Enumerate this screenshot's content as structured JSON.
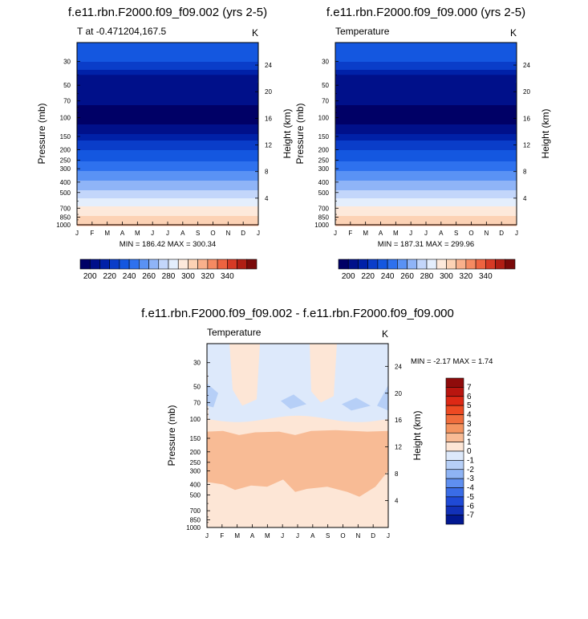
{
  "chart_data": [
    {
      "type": "contour",
      "title": "f.e11.rbn.F2000.f09_f09.002 (yrs 2-5)",
      "left_string": "T at -0.471204,167.5",
      "right_string": "K",
      "xlabel": "",
      "ylabel": "Pressure (mb)",
      "y2label": "Height (km)",
      "x_ticks": [
        "J",
        "F",
        "M",
        "A",
        "M",
        "J",
        "J",
        "A",
        "S",
        "O",
        "N",
        "D",
        "J"
      ],
      "y_ticks": [
        30,
        50,
        70,
        100,
        150,
        200,
        250,
        300,
        400,
        500,
        700,
        850,
        1000
      ],
      "y2_ticks": [
        24,
        20,
        16,
        12,
        8,
        4
      ],
      "ylim": [
        1000,
        20
      ],
      "stats": "MIN = 186.42 MAX = 300.34",
      "profile": [
        {
          "p": 20,
          "T": 225
        },
        {
          "p": 30,
          "T": 220
        },
        {
          "p": 40,
          "T": 205
        },
        {
          "p": 60,
          "T": 192
        },
        {
          "p": 100,
          "T": 188
        },
        {
          "p": 130,
          "T": 192
        },
        {
          "p": 150,
          "T": 205
        },
        {
          "p": 200,
          "T": 219
        },
        {
          "p": 250,
          "T": 229
        },
        {
          "p": 300,
          "T": 238
        },
        {
          "p": 400,
          "T": 252
        },
        {
          "p": 500,
          "T": 263
        },
        {
          "p": 600,
          "T": 274
        },
        {
          "p": 700,
          "T": 282
        },
        {
          "p": 850,
          "T": 292
        },
        {
          "p": 1000,
          "T": 300
        }
      ]
    },
    {
      "type": "contour",
      "title": "f.e11.rbn.F2000.f09_f09.000 (yrs 2-5)",
      "left_string": "Temperature",
      "right_string": "K",
      "xlabel": "",
      "ylabel": "Pressure (mb)",
      "y2label": "Height (km)",
      "x_ticks": [
        "J",
        "F",
        "M",
        "A",
        "M",
        "J",
        "J",
        "A",
        "S",
        "O",
        "N",
        "D",
        "J"
      ],
      "y_ticks": [
        30,
        50,
        70,
        100,
        150,
        200,
        250,
        300,
        400,
        500,
        700,
        850,
        1000
      ],
      "y2_ticks": [
        24,
        20,
        16,
        12,
        8,
        4
      ],
      "ylim": [
        1000,
        20
      ],
      "stats": "MIN = 187.31 MAX = 299.96",
      "profile": [
        {
          "p": 20,
          "T": 225
        },
        {
          "p": 30,
          "T": 220
        },
        {
          "p": 40,
          "T": 205
        },
        {
          "p": 60,
          "T": 192
        },
        {
          "p": 100,
          "T": 188
        },
        {
          "p": 130,
          "T": 192
        },
        {
          "p": 150,
          "T": 205
        },
        {
          "p": 200,
          "T": 219
        },
        {
          "p": 250,
          "T": 229
        },
        {
          "p": 300,
          "T": 238
        },
        {
          "p": 400,
          "T": 252
        },
        {
          "p": 500,
          "T": 263
        },
        {
          "p": 600,
          "T": 274
        },
        {
          "p": 700,
          "T": 282
        },
        {
          "p": 850,
          "T": 292
        },
        {
          "p": 1000,
          "T": 300
        }
      ]
    },
    {
      "type": "contour",
      "title": "f.e11.rbn.F2000.f09_f09.002 - f.e11.rbn.F2000.f09_f09.000",
      "left_string": "Temperature",
      "right_string": "K",
      "xlabel": "",
      "ylabel": "Pressure (mb)",
      "y2label": "Height (km)",
      "x_ticks": [
        "J",
        "F",
        "M",
        "A",
        "M",
        "J",
        "J",
        "A",
        "S",
        "O",
        "N",
        "D",
        "J"
      ],
      "y_ticks": [
        30,
        50,
        70,
        100,
        150,
        200,
        250,
        300,
        400,
        500,
        700,
        850,
        1000
      ],
      "y2_ticks": [
        24,
        20,
        16,
        12,
        8,
        4
      ],
      "ylim": [
        1000,
        20
      ],
      "stats": "MIN = -2.17 MAX = 1.74",
      "regions": [
        {
          "level": "0 to 1",
          "desc": "lower troposphere, 1000-200 mb"
        },
        {
          "level": "1 to 2",
          "desc": "mid troposphere, 400-130 mb"
        },
        {
          "level": "-1 to 0",
          "desc": "upper levels, 20-110 mb"
        },
        {
          "level": "-2 to -1",
          "desc": "small patches near 50-80 mb"
        }
      ]
    }
  ],
  "colorbar_abs": {
    "labels": [
      "200",
      "220",
      "240",
      "260",
      "280",
      "300",
      "320",
      "340"
    ],
    "colors": [
      "#000066",
      "#00108a",
      "#0021a8",
      "#0a3dc9",
      "#1457e0",
      "#2e71ee",
      "#5a92f4",
      "#8fb4f7",
      "#c3d6fa",
      "#e4eefc",
      "#fde9db",
      "#fcd2b5",
      "#f9b08c",
      "#f58a62",
      "#ee6340",
      "#d63a25",
      "#b01e14",
      "#7a0a0a"
    ]
  },
  "colorbar_diff": {
    "labels": [
      "7",
      "6",
      "5",
      "4",
      "3",
      "2",
      "1",
      "0",
      "-1",
      "-2",
      "-3",
      "-4",
      "-5",
      "-6",
      "-7"
    ],
    "colors": [
      "#8f0b0b",
      "#b9150f",
      "#dd2915",
      "#ed4a22",
      "#f06d3c",
      "#f49460",
      "#f8bb95",
      "#fde6d6",
      "#dde9fb",
      "#b6cff7",
      "#8eb3f4",
      "#5f8ff0",
      "#3a6ce6",
      "#1f4ad6",
      "#1231b8",
      "#021891"
    ]
  }
}
